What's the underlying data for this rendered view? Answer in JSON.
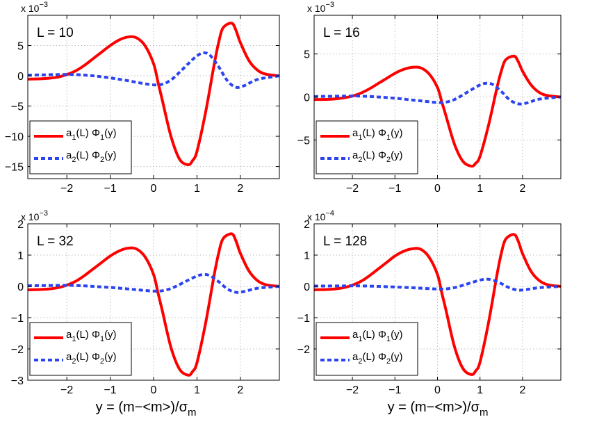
{
  "x_axis_label_main": "y = (m−<m>)/σ",
  "x_axis_label_sub": "m",
  "legend": {
    "series1": {
      "prefix": "a",
      "s1": "1",
      "mid": "(L) Φ",
      "s2": "1",
      "suffix": "(y)"
    },
    "series2": {
      "prefix": "a",
      "s1": "2",
      "mid": "(L) Φ",
      "s2": "2",
      "suffix": "(y)"
    }
  },
  "colors": {
    "series1": "#ff0000",
    "series2": "#2b44f0",
    "grid": "#bdbdbd",
    "axes": "#000000"
  },
  "chart_data": [
    {
      "type": "line",
      "title": "L = 10",
      "xlim": [
        -2.9,
        2.9
      ],
      "ylim": [
        -17,
        10
      ],
      "xticks": [
        -2,
        -1,
        0,
        1,
        2
      ],
      "yticks": [
        -15,
        -10,
        -5,
        0,
        5
      ],
      "ytick_labels": [
        "−15",
        "−10",
        "−5",
        "0",
        "5"
      ],
      "xtick_labels": [
        "−2",
        "−1",
        "0",
        "1",
        "2"
      ],
      "exponent_base": "x 10",
      "exponent_power": "−3",
      "grid": true,
      "series": [
        {
          "name": "a1(L) Φ1(y)",
          "style": "solid",
          "x": [
            -2.9,
            -2.6,
            -2.4,
            -2.2,
            -2.0,
            -1.8,
            -1.6,
            -1.4,
            -1.2,
            -1.0,
            -0.8,
            -0.6,
            -0.4,
            -0.2,
            0.0,
            0.1,
            0.2,
            0.4,
            0.6,
            0.8,
            0.9,
            1.0,
            1.2,
            1.4,
            1.5,
            1.6,
            1.8,
            1.9,
            2.0,
            2.2,
            2.4,
            2.6,
            2.9
          ],
          "values": [
            -0.55,
            -0.5,
            -0.4,
            -0.2,
            0.2,
            0.8,
            1.7,
            2.8,
            3.9,
            5.0,
            5.9,
            6.4,
            6.3,
            5.0,
            2.0,
            -1.0,
            -4.0,
            -10.0,
            -13.8,
            -14.7,
            -14.0,
            -12.5,
            -6.0,
            2.0,
            5.5,
            7.9,
            8.7,
            7.5,
            5.5,
            2.5,
            0.9,
            0.25,
            0.0
          ]
        },
        {
          "name": "a2(L) Φ2(y)",
          "style": "dashed",
          "x": [
            -2.9,
            -2.6,
            -2.2,
            -1.8,
            -1.4,
            -1.0,
            -0.6,
            -0.3,
            0.0,
            0.2,
            0.4,
            0.6,
            0.8,
            1.0,
            1.15,
            1.3,
            1.5,
            1.7,
            1.9,
            2.1,
            2.4,
            2.9
          ],
          "values": [
            0.1,
            0.15,
            0.2,
            0.2,
            0.0,
            -0.35,
            -0.8,
            -1.2,
            -1.5,
            -1.4,
            -0.7,
            0.6,
            2.0,
            3.3,
            3.8,
            3.4,
            1.5,
            -0.8,
            -1.9,
            -1.6,
            -0.6,
            0.0
          ]
        }
      ],
      "annotation": "L = 10"
    },
    {
      "type": "line",
      "title": "L = 16",
      "xlim": [
        -2.9,
        2.9
      ],
      "ylim": [
        -9.5,
        9.5
      ],
      "xticks": [
        -2,
        -1,
        0,
        1,
        2
      ],
      "yticks": [
        -5,
        0,
        5
      ],
      "ytick_labels": [
        "−5",
        "0",
        "5"
      ],
      "xtick_labels": [
        "−2",
        "−1",
        "0",
        "1",
        "2"
      ],
      "exponent_base": "x 10",
      "exponent_power": "−3",
      "grid": true,
      "series": [
        {
          "name": "a1(L) Φ1(y)",
          "style": "solid",
          "x": [
            -2.9,
            -2.6,
            -2.4,
            -2.2,
            -2.0,
            -1.8,
            -1.6,
            -1.4,
            -1.2,
            -1.0,
            -0.8,
            -0.6,
            -0.4,
            -0.2,
            0.0,
            0.1,
            0.2,
            0.4,
            0.6,
            0.8,
            0.9,
            1.0,
            1.2,
            1.4,
            1.5,
            1.6,
            1.8,
            1.9,
            2.0,
            2.2,
            2.4,
            2.6,
            2.9
          ],
          "values": [
            -0.3,
            -0.28,
            -0.22,
            -0.1,
            0.1,
            0.45,
            0.95,
            1.55,
            2.15,
            2.75,
            3.2,
            3.45,
            3.4,
            2.7,
            1.1,
            -0.55,
            -2.2,
            -5.5,
            -7.5,
            -8.05,
            -7.7,
            -6.9,
            -3.3,
            1.1,
            3.0,
            4.3,
            4.75,
            4.1,
            3.0,
            1.4,
            0.5,
            0.15,
            0.0
          ]
        },
        {
          "name": "a2(L) Φ2(y)",
          "style": "dashed",
          "x": [
            -2.9,
            -2.6,
            -2.2,
            -1.8,
            -1.4,
            -1.0,
            -0.6,
            -0.3,
            0.0,
            0.2,
            0.4,
            0.6,
            0.8,
            1.0,
            1.15,
            1.3,
            1.5,
            1.7,
            1.9,
            2.1,
            2.4,
            2.9
          ],
          "values": [
            0.05,
            0.07,
            0.1,
            0.1,
            0.0,
            -0.15,
            -0.35,
            -0.5,
            -0.65,
            -0.6,
            -0.3,
            0.25,
            0.85,
            1.4,
            1.6,
            1.45,
            0.65,
            -0.35,
            -0.8,
            -0.7,
            -0.25,
            0.0
          ]
        }
      ],
      "annotation": "L = 16"
    },
    {
      "type": "line",
      "title": "L = 32",
      "xlim": [
        -2.9,
        2.9
      ],
      "ylim": [
        -3,
        2
      ],
      "xticks": [
        -2,
        -1,
        0,
        1,
        2
      ],
      "yticks": [
        -3,
        -2,
        -1,
        0,
        1,
        2
      ],
      "ytick_labels": [
        "−3",
        "−2",
        "−1",
        "0",
        "1",
        "2"
      ],
      "xtick_labels": [
        "−2",
        "−1",
        "0",
        "1",
        "2"
      ],
      "exponent_base": "x 10",
      "exponent_power": "−3",
      "grid": true,
      "series": [
        {
          "name": "a1(L) Φ1(y)",
          "style": "solid",
          "x": [
            -2.9,
            -2.6,
            -2.4,
            -2.2,
            -2.0,
            -1.8,
            -1.6,
            -1.4,
            -1.2,
            -1.0,
            -0.8,
            -0.6,
            -0.4,
            -0.2,
            0.0,
            0.1,
            0.2,
            0.4,
            0.6,
            0.8,
            0.9,
            1.0,
            1.2,
            1.4,
            1.5,
            1.6,
            1.8,
            1.9,
            2.0,
            2.2,
            2.4,
            2.6,
            2.9
          ],
          "values": [
            -0.11,
            -0.1,
            -0.08,
            -0.04,
            0.04,
            0.16,
            0.34,
            0.55,
            0.76,
            0.97,
            1.13,
            1.22,
            1.2,
            0.95,
            0.38,
            -0.2,
            -0.77,
            -1.95,
            -2.65,
            -2.84,
            -2.72,
            -2.44,
            -1.17,
            0.39,
            1.06,
            1.52,
            1.68,
            1.45,
            1.06,
            0.49,
            0.18,
            0.05,
            0.0
          ]
        },
        {
          "name": "a2(L) Φ2(y)",
          "style": "dashed",
          "x": [
            -2.9,
            -2.6,
            -2.2,
            -1.8,
            -1.4,
            -1.0,
            -0.6,
            -0.3,
            0.0,
            0.2,
            0.4,
            0.6,
            0.8,
            1.0,
            1.15,
            1.3,
            1.5,
            1.7,
            1.9,
            2.1,
            2.4,
            2.9
          ],
          "values": [
            0.02,
            0.025,
            0.03,
            0.03,
            0.0,
            -0.035,
            -0.08,
            -0.12,
            -0.15,
            -0.14,
            -0.07,
            0.06,
            0.2,
            0.33,
            0.38,
            0.34,
            0.15,
            -0.08,
            -0.19,
            -0.16,
            -0.06,
            0.0
          ]
        }
      ],
      "annotation": "L = 32"
    },
    {
      "type": "line",
      "title": "L = 128",
      "xlim": [
        -2.9,
        2.9
      ],
      "ylim": [
        -3,
        2
      ],
      "xticks": [
        -2,
        -1,
        0,
        1,
        2
      ],
      "yticks": [
        -2,
        -1,
        0,
        1,
        2
      ],
      "ytick_labels": [
        "−2",
        "−1",
        "0",
        "1",
        "2"
      ],
      "xtick_labels": [
        "−2",
        "−1",
        "0",
        "1",
        "2"
      ],
      "exponent_base": "x 10",
      "exponent_power": "−4",
      "grid": true,
      "series": [
        {
          "name": "a1(L) Φ1(y)",
          "style": "solid",
          "x": [
            -2.9,
            -2.6,
            -2.4,
            -2.2,
            -2.0,
            -1.8,
            -1.6,
            -1.4,
            -1.2,
            -1.0,
            -0.8,
            -0.6,
            -0.4,
            -0.2,
            0.0,
            0.1,
            0.2,
            0.4,
            0.6,
            0.8,
            0.9,
            1.0,
            1.2,
            1.4,
            1.5,
            1.6,
            1.8,
            1.9,
            2.0,
            2.2,
            2.4,
            2.6,
            2.9
          ],
          "values": [
            -0.11,
            -0.1,
            -0.08,
            -0.04,
            0.04,
            0.16,
            0.34,
            0.55,
            0.76,
            0.97,
            1.12,
            1.2,
            1.19,
            0.94,
            0.38,
            -0.2,
            -0.76,
            -1.93,
            -2.63,
            -2.82,
            -2.7,
            -2.42,
            -1.16,
            0.38,
            1.05,
            1.5,
            1.66,
            1.44,
            1.05,
            0.48,
            0.18,
            0.05,
            0.0
          ]
        },
        {
          "name": "a2(L) Φ2(y)",
          "style": "dashed",
          "x": [
            -2.9,
            -2.6,
            -2.2,
            -1.8,
            -1.4,
            -1.0,
            -0.6,
            -0.3,
            0.0,
            0.2,
            0.4,
            0.6,
            0.8,
            1.0,
            1.15,
            1.3,
            1.5,
            1.7,
            1.9,
            2.1,
            2.4,
            2.9
          ],
          "values": [
            0.01,
            0.012,
            0.015,
            0.015,
            0.0,
            -0.02,
            -0.045,
            -0.065,
            -0.085,
            -0.08,
            -0.04,
            0.035,
            0.12,
            0.2,
            0.23,
            0.2,
            0.09,
            -0.05,
            -0.12,
            -0.1,
            -0.04,
            0.0
          ]
        }
      ],
      "annotation": "L = 128"
    }
  ]
}
